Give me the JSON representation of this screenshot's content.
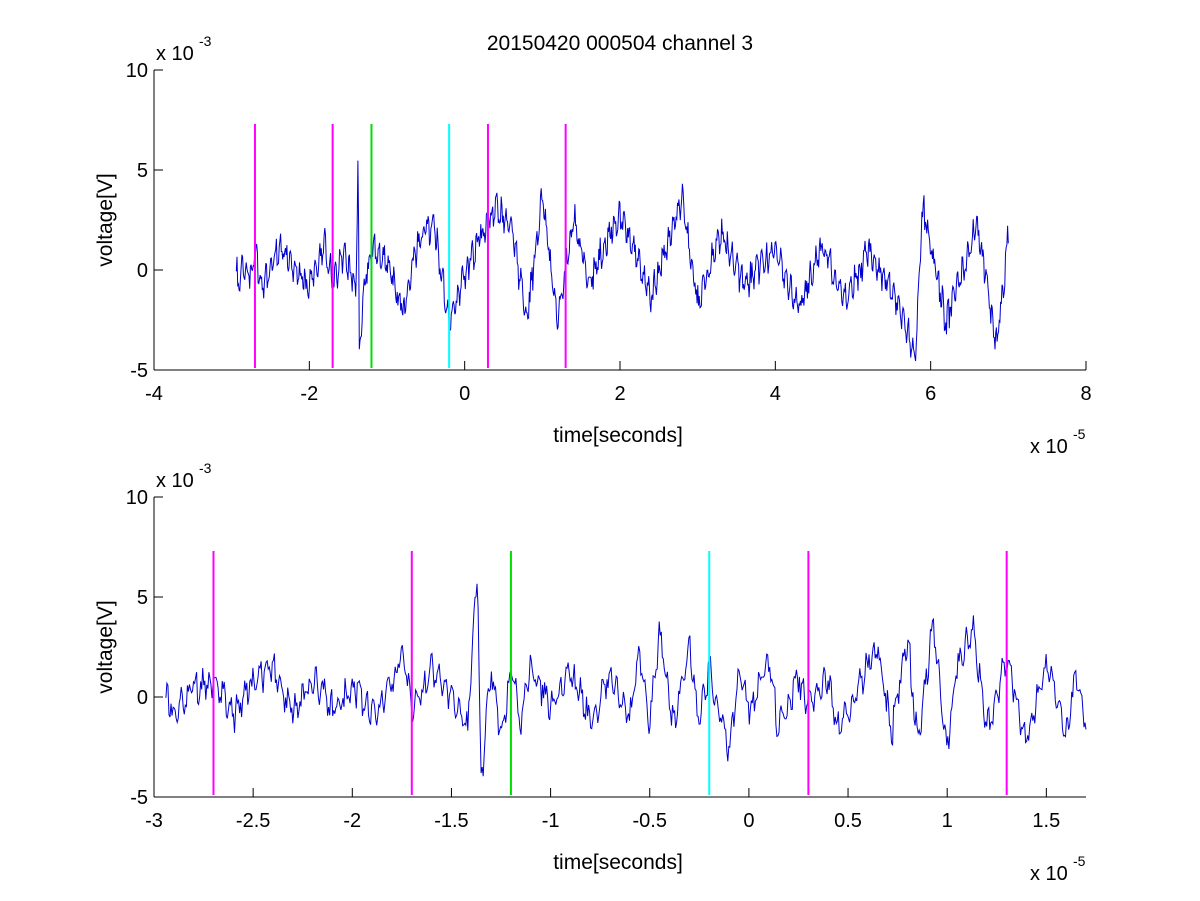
{
  "figure_title": "20150420 000504 channel 3",
  "colors": {
    "trace": "#0000cc",
    "magenta": "#ff00ff",
    "green": "#00dd00",
    "cyan": "#00ffff",
    "axes": "#000000"
  },
  "chart_data": [
    {
      "type": "line",
      "title": "20150420 000504 channel 3",
      "xlabel": "time[seconds]",
      "ylabel": "voltage[V]",
      "x_exponent_label": "x 10",
      "x_exponent": "-5",
      "y_exponent_label": "x 10",
      "y_exponent": "-3",
      "xlim": [
        -4,
        8
      ],
      "ylim": [
        -5,
        10
      ],
      "xticks": [
        -4,
        -2,
        0,
        2,
        4,
        6,
        8
      ],
      "xtick_labels": [
        "-4",
        "-2",
        "0",
        "2",
        "4",
        "6",
        "8"
      ],
      "yticks": [
        -5,
        0,
        5,
        10
      ],
      "ytick_labels": [
        "-5",
        "0",
        "5",
        "10"
      ],
      "grid": false,
      "series": [
        {
          "x_range": [
            -2.94,
            7.0
          ],
          "color": "#0000cc",
          "anchor_points": [
            [
              -2.94,
              0.3
            ],
            [
              -2.9,
              -0.8
            ],
            [
              -2.85,
              0.2
            ],
            [
              -2.75,
              -0.4
            ],
            [
              -2.7,
              0.9
            ],
            [
              -2.6,
              -1.0
            ],
            [
              -2.4,
              1.2
            ],
            [
              -2.2,
              0.3
            ],
            [
              -2.0,
              -0.9
            ],
            [
              -1.8,
              1.5
            ],
            [
              -1.7,
              -0.6
            ],
            [
              -1.55,
              0.8
            ],
            [
              -1.4,
              -1.2
            ],
            [
              -1.37,
              6.6
            ],
            [
              -1.36,
              -4.3
            ],
            [
              -1.3,
              -0.8
            ],
            [
              -1.2,
              1.3
            ],
            [
              -1.0,
              0.4
            ],
            [
              -0.8,
              -2.0
            ],
            [
              -0.6,
              1.3
            ],
            [
              -0.4,
              2.4
            ],
            [
              -0.2,
              -2.7
            ],
            [
              0.0,
              -0.2
            ],
            [
              0.4,
              3.2
            ],
            [
              0.6,
              2.0
            ],
            [
              0.8,
              -2.4
            ],
            [
              1.0,
              3.6
            ],
            [
              1.2,
              -2.6
            ],
            [
              1.4,
              2.8
            ],
            [
              1.6,
              -0.6
            ],
            [
              2.0,
              3.0
            ],
            [
              2.4,
              -1.4
            ],
            [
              2.8,
              3.7
            ],
            [
              3.0,
              -1.6
            ],
            [
              3.3,
              1.8
            ],
            [
              3.6,
              -0.8
            ],
            [
              4.0,
              1.0
            ],
            [
              4.3,
              -2.0
            ],
            [
              4.6,
              1.2
            ],
            [
              4.9,
              -1.4
            ],
            [
              5.2,
              0.9
            ],
            [
              5.5,
              -1.0
            ],
            [
              5.8,
              -4.2
            ],
            [
              5.9,
              3.2
            ],
            [
              6.2,
              -2.6
            ],
            [
              6.6,
              2.4
            ],
            [
              6.85,
              -3.9
            ],
            [
              7.0,
              1.7
            ]
          ]
        }
      ],
      "vertical_markers": [
        {
          "x": -2.7,
          "color": "#ff00ff",
          "ymin": -4.9,
          "ymax": 7.3
        },
        {
          "x": -1.7,
          "color": "#ff00ff",
          "ymin": -4.9,
          "ymax": 7.3
        },
        {
          "x": -1.2,
          "color": "#00dd00",
          "ymin": -4.9,
          "ymax": 7.3
        },
        {
          "x": -0.2,
          "color": "#00ffff",
          "ymin": -4.9,
          "ymax": 7.3
        },
        {
          "x": 0.3,
          "color": "#ff00ff",
          "ymin": -4.9,
          "ymax": 7.3
        },
        {
          "x": 1.3,
          "color": "#ff00ff",
          "ymin": -4.9,
          "ymax": 7.3
        }
      ]
    },
    {
      "type": "line",
      "title": "",
      "xlabel": "time[seconds]",
      "ylabel": "voltage[V]",
      "x_exponent_label": "x 10",
      "x_exponent": "-5",
      "y_exponent_label": "x 10",
      "y_exponent": "-3",
      "xlim": [
        -3.0,
        1.7
      ],
      "ylim": [
        -5,
        10
      ],
      "xticks": [
        -3,
        -2.5,
        -2,
        -1.5,
        -1,
        -0.5,
        0,
        0.5,
        1,
        1.5
      ],
      "xtick_labels": [
        "-3",
        "-2.5",
        "-2",
        "-1.5",
        "-1",
        "-0.5",
        "0",
        "0.5",
        "1",
        "1.5"
      ],
      "yticks": [
        -5,
        0,
        5,
        10
      ],
      "ytick_labels": [
        "-5",
        "0",
        "5",
        "10"
      ],
      "grid": false,
      "series": [
        {
          "x_range": [
            -2.94,
            1.7
          ],
          "color": "#0000cc",
          "anchor_points": [
            [
              -2.94,
              0.3
            ],
            [
              -2.9,
              -0.8
            ],
            [
              -2.8,
              0.4
            ],
            [
              -2.7,
              0.9
            ],
            [
              -2.6,
              -1.0
            ],
            [
              -2.5,
              0.8
            ],
            [
              -2.4,
              1.5
            ],
            [
              -2.3,
              -0.8
            ],
            [
              -2.2,
              0.9
            ],
            [
              -2.1,
              -0.6
            ],
            [
              -2.0,
              0.5
            ],
            [
              -1.9,
              -1.0
            ],
            [
              -1.8,
              0.8
            ],
            [
              -1.75,
              2.2
            ],
            [
              -1.7,
              -0.6
            ],
            [
              -1.6,
              1.4
            ],
            [
              -1.5,
              0.0
            ],
            [
              -1.42,
              -1.6
            ],
            [
              -1.37,
              6.6
            ],
            [
              -1.35,
              -4.3
            ],
            [
              -1.3,
              1.5
            ],
            [
              -1.25,
              -2.0
            ],
            [
              -1.2,
              1.3
            ],
            [
              -1.15,
              -1.2
            ],
            [
              -1.1,
              1.6
            ],
            [
              -1.0,
              -0.6
            ],
            [
              -0.9,
              1.4
            ],
            [
              -0.8,
              -1.2
            ],
            [
              -0.7,
              1.0
            ],
            [
              -0.6,
              -0.8
            ],
            [
              -0.55,
              2.2
            ],
            [
              -0.5,
              -1.4
            ],
            [
              -0.45,
              3.2
            ],
            [
              -0.38,
              -1.4
            ],
            [
              -0.3,
              2.6
            ],
            [
              -0.25,
              -1.2
            ],
            [
              -0.2,
              1.4
            ],
            [
              -0.1,
              -2.7
            ],
            [
              -0.05,
              1.3
            ],
            [
              0.0,
              -0.6
            ],
            [
              0.1,
              1.6
            ],
            [
              0.15,
              -1.6
            ],
            [
              0.25,
              1.0
            ],
            [
              0.3,
              -0.4
            ],
            [
              0.4,
              1.0
            ],
            [
              0.45,
              -1.6
            ],
            [
              0.55,
              0.4
            ],
            [
              0.65,
              2.7
            ],
            [
              0.72,
              -1.8
            ],
            [
              0.8,
              3.0
            ],
            [
              0.85,
              -2.2
            ],
            [
              0.93,
              3.6
            ],
            [
              1.0,
              -2.8
            ],
            [
              1.05,
              1.6
            ],
            [
              1.13,
              3.4
            ],
            [
              1.2,
              -1.4
            ],
            [
              1.3,
              1.8
            ],
            [
              1.4,
              -2.2
            ],
            [
              1.5,
              1.8
            ],
            [
              1.6,
              -1.8
            ],
            [
              1.65,
              1.0
            ],
            [
              1.7,
              -1.3
            ]
          ]
        }
      ],
      "vertical_markers": [
        {
          "x": -2.7,
          "color": "#ff00ff",
          "ymin": -4.9,
          "ymax": 7.3
        },
        {
          "x": -1.7,
          "color": "#ff00ff",
          "ymin": -4.9,
          "ymax": 7.3
        },
        {
          "x": -1.2,
          "color": "#00dd00",
          "ymin": -4.9,
          "ymax": 7.3
        },
        {
          "x": -0.2,
          "color": "#00ffff",
          "ymin": -4.9,
          "ymax": 7.3
        },
        {
          "x": 0.3,
          "color": "#ff00ff",
          "ymin": -4.9,
          "ymax": 7.3
        },
        {
          "x": 1.3,
          "color": "#ff00ff",
          "ymin": -4.9,
          "ymax": 7.3
        }
      ]
    }
  ]
}
